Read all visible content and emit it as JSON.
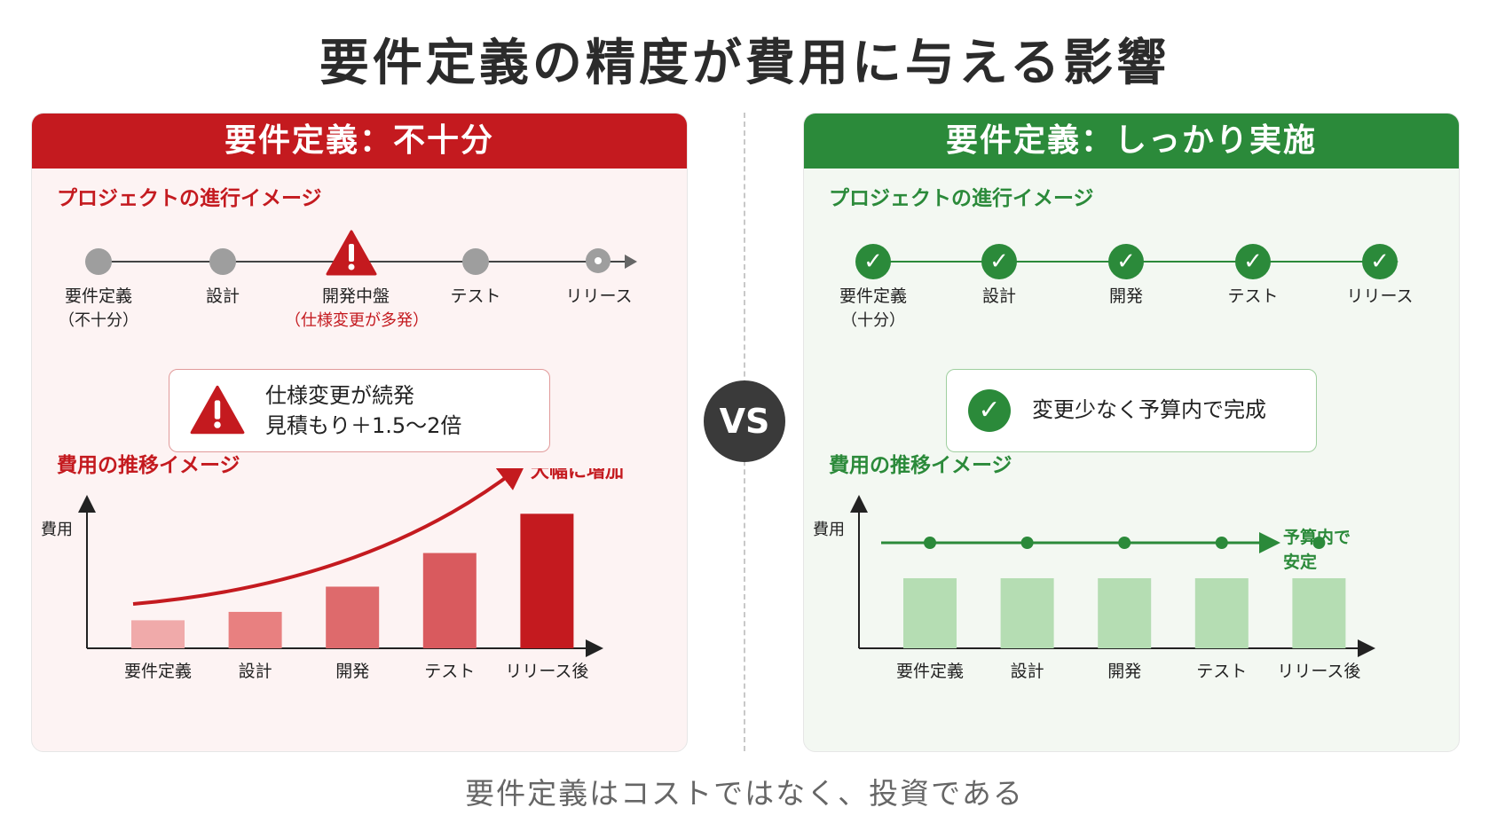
{
  "title": "要件定義の精度が費用に与える影響",
  "vs": "VS",
  "footer": "要件定義はコストではなく、投資である",
  "colors": {
    "bad": "#c41a1f",
    "good": "#2b8a3a",
    "neutral_node": "#9e9e9e"
  },
  "left_panel": {
    "header": "要件定義：不十分",
    "progress_label": "プロジェクトの進行イメージ",
    "stages": [
      {
        "label": "要件定義",
        "sub": "（不十分）",
        "status": "gray"
      },
      {
        "label": "設計",
        "sub": "",
        "status": "gray"
      },
      {
        "label": "開発中盤",
        "sub": "（仕様変更が多発）",
        "status": "warning"
      },
      {
        "label": "テスト",
        "sub": "",
        "status": "gray"
      },
      {
        "label": "リリース",
        "sub": "",
        "status": "gray"
      }
    ],
    "callout": {
      "icon": "warning-icon",
      "line1": "仕様変更が続発",
      "line2": "見積もり＋1.5〜2倍"
    },
    "cost_label": "費用の推移イメージ",
    "trend_label": "大幅に増加"
  },
  "right_panel": {
    "header": "要件定義：しっかり実施",
    "progress_label": "プロジェクトの進行イメージ",
    "stages": [
      {
        "label": "要件定義",
        "sub": "（十分）",
        "status": "done"
      },
      {
        "label": "設計",
        "sub": "",
        "status": "done"
      },
      {
        "label": "開発",
        "sub": "",
        "status": "done"
      },
      {
        "label": "テスト",
        "sub": "",
        "status": "done"
      },
      {
        "label": "リリース",
        "sub": "",
        "status": "done"
      }
    ],
    "callout": {
      "icon": "check-icon",
      "line1": "変更少なく予算内で完成"
    },
    "cost_label": "費用の推移イメージ",
    "trend_label_1": "予算内で",
    "trend_label_2": "安定"
  },
  "chart_data": [
    {
      "type": "bar",
      "ylabel": "費用",
      "categories": [
        "要件定義",
        "設計",
        "開発",
        "テスト",
        "リリース後"
      ],
      "values": [
        1.0,
        1.3,
        2.2,
        3.4,
        4.8
      ],
      "annotation": "大幅に増加"
    },
    {
      "type": "bar",
      "ylabel": "費用",
      "categories": [
        "要件定義",
        "設計",
        "開発",
        "テスト",
        "リリース後"
      ],
      "values": [
        2.5,
        2.5,
        2.5,
        2.5,
        2.5
      ],
      "annotation": "予算内で安定"
    }
  ]
}
